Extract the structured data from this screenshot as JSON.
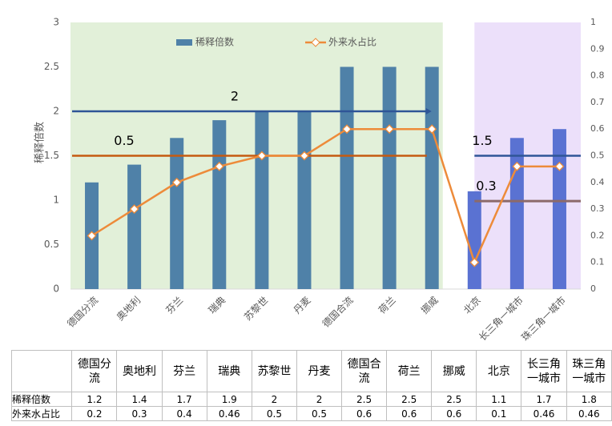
{
  "chart_data": {
    "type": "bar-line",
    "y_label": "稀释倍数",
    "categories": [
      "德国分流",
      "奥地利",
      "芬兰",
      "瑞典",
      "苏黎世",
      "丹麦",
      "德国合流",
      "荷兰",
      "挪威",
      "北京",
      "长三角一城市",
      "珠三角一城市"
    ],
    "series": [
      {
        "name": "稀释倍数",
        "kind": "bar",
        "colors": [
          "#4f81a8",
          "#4f81a8",
          "#4f81a8",
          "#4f81a8",
          "#4f81a8",
          "#4f81a8",
          "#4f81a8",
          "#4f81a8",
          "#4f81a8",
          "#5a72d2",
          "#5a72d2",
          "#5a72d2"
        ],
        "values": [
          1.2,
          1.4,
          1.7,
          1.9,
          2,
          2,
          2.5,
          2.5,
          2.5,
          1.1,
          1.7,
          1.8
        ]
      },
      {
        "name": "外来水占比",
        "kind": "line",
        "axis": "y2",
        "color": "#ed8b3a",
        "values": [
          0.2,
          0.3,
          0.4,
          0.46,
          0.5,
          0.5,
          0.6,
          0.6,
          0.6,
          0.1,
          0.46,
          0.46
        ]
      }
    ],
    "ylim": [
      0,
      3
    ],
    "yticks": [
      0,
      0.5,
      1,
      1.5,
      2,
      2.5,
      3
    ],
    "y2lim": [
      0,
      1
    ],
    "y2ticks": [
      0,
      0.1,
      0.2,
      0.3,
      0.4,
      0.5,
      0.6,
      0.7,
      0.8,
      0.9,
      1
    ],
    "regions": [
      {
        "color": "#e2f0d9",
        "lines": [
          {
            "value": 2,
            "axis": "y",
            "color": "#2f5597"
          },
          {
            "value": 0.5,
            "axis": "y2",
            "color": "#c55a11"
          }
        ]
      },
      {
        "color": "#ece0fa",
        "lines": [
          {
            "value": 1.5,
            "axis": "y",
            "color": "#2f5597"
          },
          {
            "value": {
              "value": 0.33,
              "label": "0.3"
            },
            "axis": "y2",
            "color": "#8c6a6a"
          }
        ]
      }
    ],
    "table_row_labels": [
      "稀释倍数",
      "外来水占比"
    ]
  }
}
